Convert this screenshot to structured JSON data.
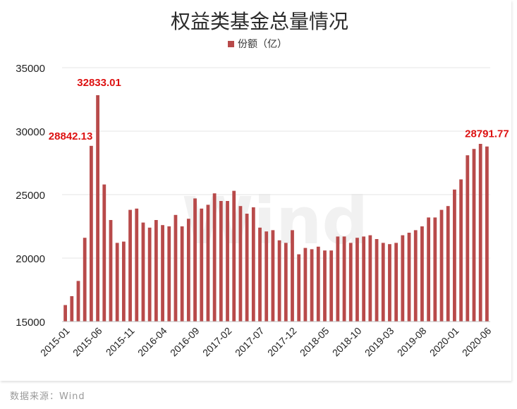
{
  "source_note": "数据来源：Wind",
  "chart_data": {
    "type": "bar",
    "title": "权益类基金总量情况",
    "legend": [
      "份额（亿）"
    ],
    "legend_position": "top-center",
    "watermark": "Wind",
    "bar_color": "#b84a4a",
    "label_color": "#dd1111",
    "grid": "horizontal",
    "ylim": [
      15000,
      35000
    ],
    "yticks": [
      15000,
      20000,
      25000,
      30000,
      35000
    ],
    "ytick_labels": [
      "15000",
      "20000",
      "25000",
      "30000",
      "35000"
    ],
    "xtick_labels": [
      "2015-01",
      "2015-06",
      "2015-11",
      "2016-04",
      "2016-09",
      "2017-02",
      "2017-07",
      "2017-12",
      "2018-05",
      "2018-10",
      "2019-03",
      "2019-08",
      "2020-01",
      "2020-06"
    ],
    "categories": [
      "2015-01",
      "2015-02",
      "2015-03",
      "2015-04",
      "2015-05",
      "2015-06",
      "2015-07",
      "2015-08",
      "2015-09",
      "2015-10",
      "2015-11",
      "2015-12",
      "2016-01",
      "2016-02",
      "2016-03",
      "2016-04",
      "2016-05",
      "2016-06",
      "2016-07",
      "2016-08",
      "2016-09",
      "2016-10",
      "2016-11",
      "2016-12",
      "2017-01",
      "2017-02",
      "2017-03",
      "2017-04",
      "2017-05",
      "2017-06",
      "2017-07",
      "2017-08",
      "2017-09",
      "2017-10",
      "2017-11",
      "2017-12",
      "2018-01",
      "2018-02",
      "2018-03",
      "2018-04",
      "2018-05",
      "2018-06",
      "2018-07",
      "2018-08",
      "2018-09",
      "2018-10",
      "2018-11",
      "2018-12",
      "2019-01",
      "2019-02",
      "2019-03",
      "2019-04",
      "2019-05",
      "2019-06",
      "2019-07",
      "2019-08",
      "2019-09",
      "2019-10",
      "2019-11",
      "2019-12",
      "2020-01",
      "2020-02",
      "2020-03",
      "2020-04",
      "2020-05",
      "2020-06"
    ],
    "series": [
      {
        "name": "份额（亿）",
        "values": [
          16300,
          17000,
          18200,
          21600,
          28842.13,
          32833.01,
          25800,
          23000,
          21200,
          21300,
          23800,
          23900,
          22800,
          22400,
          23000,
          22600,
          22500,
          23400,
          22500,
          23100,
          24700,
          23900,
          24200,
          25100,
          24500,
          24500,
          25300,
          24100,
          23500,
          24000,
          22400,
          22100,
          22200,
          21400,
          21200,
          22200,
          20300,
          20800,
          20700,
          20900,
          20600,
          20600,
          21700,
          21700,
          21200,
          21600,
          21700,
          21800,
          21500,
          21200,
          21100,
          21200,
          21800,
          22000,
          22200,
          22500,
          23200,
          23200,
          23800,
          24100,
          25400,
          26200,
          28100,
          28600,
          29000,
          28791.77
        ]
      }
    ],
    "data_labels": [
      {
        "category": "2015-05",
        "text": "28842.13"
      },
      {
        "category": "2015-06",
        "text": "32833.01"
      },
      {
        "category": "2020-06",
        "text": "28791.77"
      }
    ]
  }
}
